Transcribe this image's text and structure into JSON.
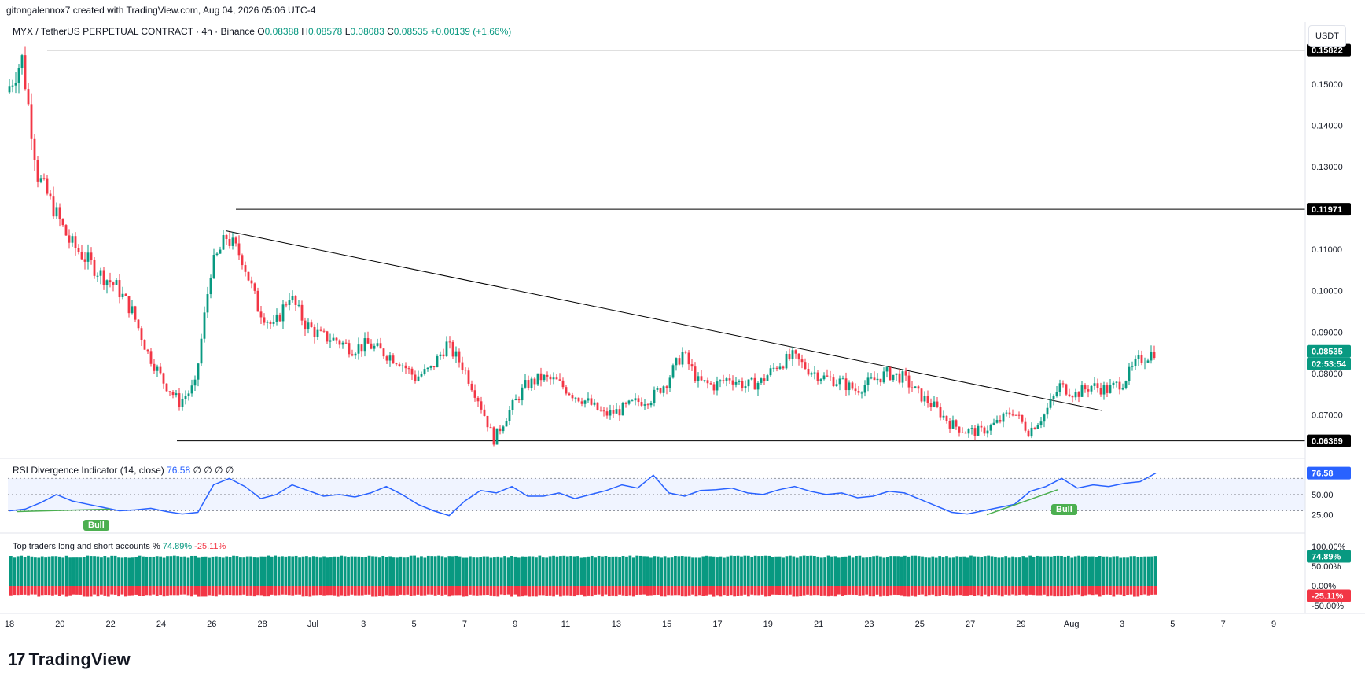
{
  "header": {
    "attribution": "gitongalennox7 created with TradingView.com, Aug 04, 2026 05:06 UTC-4"
  },
  "symbol": {
    "name": "MYX / TetherUS PERPETUAL CONTRACT · 4h · Binance",
    "o_label": "O",
    "o": "0.08388",
    "h_label": "H",
    "h": "0.08578",
    "l_label": "L",
    "l": "0.08083",
    "c_label": "C",
    "c": "0.08535",
    "change": "+0.00139 (+1.66%)"
  },
  "currency_button": "USDT",
  "price_axis": {
    "ticks": [
      "0.15000",
      "0.14000",
      "0.13000",
      "0.11000",
      "0.10000",
      "0.09000",
      "0.08000",
      "0.07000"
    ],
    "top_level_tag": "0.15822",
    "resistance_tag": "0.11971",
    "support_tag": "0.06369",
    "current_price_tag": "0.08535",
    "countdown_tag": "02:53:54"
  },
  "rsi": {
    "title": "RSI Divergence Indicator (14, close)",
    "value": "76.58",
    "placeholders": "∅ ∅ ∅ ∅",
    "axis_ticks": [
      "50.00",
      "25.00"
    ],
    "value_tag": "76.58",
    "bull_label_1": "Bull",
    "bull_label_2": "Bull"
  },
  "top_traders": {
    "title": "Top traders long and short accounts %",
    "long_value": "74.89%",
    "short_value": "-25.11%",
    "axis_ticks": [
      "100.00%",
      "50.00%",
      "0.00%",
      "-50.00%"
    ],
    "long_tag": "74.89%",
    "short_tag": "-25.11%"
  },
  "time_axis": {
    "labels": [
      "18",
      "20",
      "22",
      "24",
      "26",
      "28",
      "Jul",
      "3",
      "5",
      "7",
      "9",
      "11",
      "13",
      "15",
      "17",
      "19",
      "21",
      "23",
      "25",
      "27",
      "29",
      "Aug",
      "3",
      "5",
      "7",
      "9"
    ]
  },
  "branding": {
    "logo_text": "TradingView"
  },
  "colors": {
    "up": "#089981",
    "down": "#f23645",
    "rsi": "#2962ff",
    "bull": "#4caf50"
  },
  "chart_data": {
    "type": "candlestick",
    "ylim": [
      0.06,
      0.165
    ],
    "horizontal_levels": [
      0.15822,
      0.11971,
      0.06369
    ],
    "trendline": {
      "from": 0.1145,
      "to": 0.071
    },
    "close_path": [
      0.148,
      0.156,
      0.128,
      0.12,
      0.112,
      0.108,
      0.104,
      0.101,
      0.095,
      0.085,
      0.078,
      0.073,
      0.077,
      0.105,
      0.113,
      0.108,
      0.096,
      0.091,
      0.099,
      0.092,
      0.089,
      0.088,
      0.086,
      0.087,
      0.085,
      0.083,
      0.079,
      0.081,
      0.087,
      0.082,
      0.074,
      0.064,
      0.071,
      0.077,
      0.079,
      0.078,
      0.075,
      0.073,
      0.07,
      0.071,
      0.073,
      0.074,
      0.078,
      0.085,
      0.078,
      0.077,
      0.079,
      0.077,
      0.078,
      0.082,
      0.084,
      0.081,
      0.079,
      0.078,
      0.076,
      0.078,
      0.08,
      0.079,
      0.075,
      0.072,
      0.068,
      0.066,
      0.066,
      0.068,
      0.071,
      0.066,
      0.07,
      0.077,
      0.075,
      0.077,
      0.076,
      0.078,
      0.083,
      0.0854
    ],
    "rsi": [
      30,
      32,
      40,
      50,
      42,
      38,
      34,
      30,
      31,
      33,
      29,
      26,
      28,
      62,
      70,
      60,
      45,
      50,
      62,
      55,
      48,
      50,
      47,
      52,
      60,
      50,
      38,
      30,
      24,
      42,
      55,
      52,
      60,
      48,
      48,
      52,
      45,
      50,
      55,
      62,
      58,
      74,
      52,
      48,
      55,
      56,
      58,
      52,
      50,
      56,
      60,
      54,
      50,
      52,
      46,
      48,
      54,
      52,
      44,
      36,
      28,
      26,
      30,
      34,
      38,
      54,
      60,
      70,
      58,
      62,
      60,
      64,
      66,
      76.58
    ],
    "long_pct": 74.89,
    "short_pct": -25.11
  }
}
